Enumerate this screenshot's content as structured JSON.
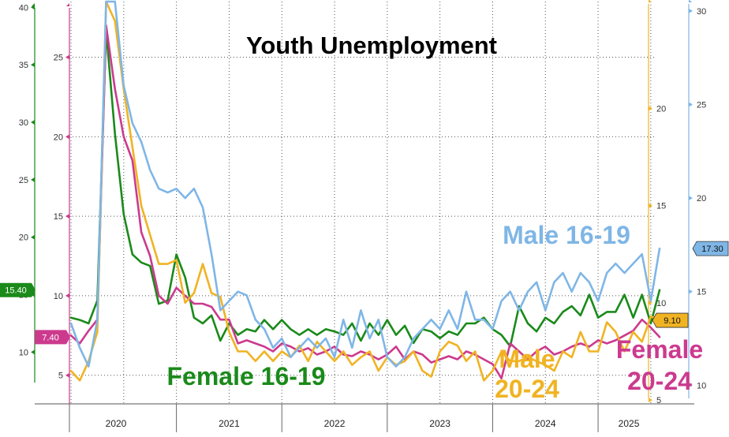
{
  "chart_data": {
    "type": "line",
    "title": "Youth Unemployment",
    "x": [
      "2020-01",
      "2020-02",
      "2020-03",
      "2020-04",
      "2020-05",
      "2020-06",
      "2020-07",
      "2020-08",
      "2020-09",
      "2020-10",
      "2020-11",
      "2020-12",
      "2021-01",
      "2021-02",
      "2021-03",
      "2021-04",
      "2021-05",
      "2021-06",
      "2021-07",
      "2021-08",
      "2021-09",
      "2021-10",
      "2021-11",
      "2021-12",
      "2022-01",
      "2022-02",
      "2022-03",
      "2022-04",
      "2022-05",
      "2022-06",
      "2022-07",
      "2022-08",
      "2022-09",
      "2022-10",
      "2022-11",
      "2022-12",
      "2023-01",
      "2023-02",
      "2023-03",
      "2023-04",
      "2023-05",
      "2023-06",
      "2023-07",
      "2023-08",
      "2023-09",
      "2023-10",
      "2023-11",
      "2023-12",
      "2024-01",
      "2024-02",
      "2024-03",
      "2024-04",
      "2024-05",
      "2024-06",
      "2024-07",
      "2024-08",
      "2024-09",
      "2024-10",
      "2024-11",
      "2024-12",
      "2025-01",
      "2025-02",
      "2025-03",
      "2025-04",
      "2025-05",
      "2025-06",
      "2025-07",
      "2025-08"
    ],
    "x_tick_labels": [
      "2020",
      "2021",
      "2022",
      "2023",
      "2024",
      "2025"
    ],
    "series": [
      {
        "name": "Female 16-19",
        "color": "#1a8a1a",
        "axis": "outer_left",
        "last_value": "15.40",
        "values": [
          13.0,
          12.8,
          12.5,
          14.5,
          38.0,
          29.0,
          22.0,
          18.5,
          17.8,
          17.5,
          14.2,
          14.5,
          18.5,
          16.5,
          13.0,
          12.5,
          13.2,
          11.0,
          12.5,
          11.5,
          12.0,
          11.8,
          12.8,
          12.0,
          12.8,
          12.0,
          11.5,
          12.0,
          11.5,
          12.0,
          11.8,
          11.5,
          12.5,
          11.0,
          12.5,
          11.5,
          12.8,
          11.5,
          12.3,
          10.8,
          12.0,
          11.8,
          11.2,
          11.8,
          11.5,
          12.5,
          12.5,
          13.0,
          12.0,
          11.5,
          10.5,
          14.0,
          12.5,
          11.8,
          13.0,
          12.5,
          13.5,
          14.0,
          13.2,
          15.0,
          13.0,
          13.5,
          13.5,
          15.0,
          13.0,
          15.0,
          12.5,
          15.4
        ]
      },
      {
        "name": "Female 20-24",
        "color": "#cc3a8e",
        "axis": "inner_left",
        "last_value": "7.40",
        "values": [
          7.5,
          7.0,
          7.8,
          8.5,
          27.0,
          23.0,
          20.0,
          18.5,
          14.0,
          12.5,
          10.0,
          9.5,
          10.5,
          10.0,
          9.5,
          9.5,
          9.3,
          8.5,
          8.5,
          7.0,
          7.2,
          7.0,
          6.8,
          6.5,
          7.0,
          6.8,
          6.5,
          6.7,
          6.3,
          6.5,
          6.8,
          6.3,
          6.2,
          6.5,
          6.3,
          6.0,
          6.3,
          6.8,
          6.0,
          6.5,
          6.3,
          5.8,
          6.0,
          6.2,
          6.0,
          6.5,
          6.3,
          6.0,
          5.7,
          4.8,
          7.0,
          6.5,
          6.0,
          6.5,
          6.8,
          6.3,
          6.5,
          6.8,
          7.0,
          6.8,
          7.2,
          7.0,
          7.2,
          7.5,
          7.8,
          8.5,
          8.0,
          7.4
        ]
      },
      {
        "name": "Male 20-24",
        "color": "#f0b323",
        "axis": "inner_right",
        "last_value": "9.10",
        "values": [
          6.5,
          6.0,
          7.0,
          8.5,
          25.5,
          24.5,
          21.0,
          18.0,
          15.0,
          13.5,
          12.0,
          12.0,
          12.2,
          10.0,
          10.5,
          12.0,
          10.5,
          10.3,
          8.5,
          7.5,
          7.5,
          7.0,
          7.5,
          7.0,
          7.5,
          7.2,
          7.8,
          7.0,
          8.0,
          7.5,
          7.0,
          7.5,
          6.8,
          7.2,
          7.5,
          6.5,
          7.2,
          6.8,
          7.0,
          7.5,
          6.5,
          6.2,
          7.5,
          8.0,
          7.8,
          7.0,
          7.5,
          6.0,
          6.5,
          7.5,
          7.0,
          7.0,
          7.2,
          7.0,
          6.8,
          6.5,
          7.5,
          7.2,
          8.5,
          7.5,
          7.5,
          9.0,
          8.5,
          7.5,
          8.5,
          8.0,
          9.3,
          9.1
        ]
      },
      {
        "name": "Male 16-19",
        "color": "#7fb6e6",
        "axis": "outer_right",
        "last_value": "17.30",
        "values": [
          13.3,
          12.0,
          11.0,
          13.5,
          30.5,
          30.5,
          26.0,
          24.0,
          23.0,
          21.5,
          20.5,
          20.3,
          20.5,
          20.0,
          20.5,
          19.5,
          17.0,
          14.0,
          14.5,
          15.0,
          14.8,
          13.5,
          13.0,
          12.0,
          12.5,
          11.5,
          12.0,
          12.5,
          12.0,
          12.5,
          11.5,
          13.5,
          12.0,
          14.0,
          12.5,
          13.5,
          11.5,
          11.0,
          11.5,
          12.5,
          13.0,
          13.5,
          13.0,
          14.0,
          13.0,
          15.0,
          13.5,
          13.5,
          13.0,
          14.5,
          15.0,
          14.0,
          15.0,
          15.5,
          14.0,
          15.5,
          16.0,
          15.0,
          16.0,
          15.5,
          14.5,
          16.0,
          16.5,
          16.0,
          16.5,
          17.0,
          14.5,
          17.3
        ]
      }
    ],
    "axes": {
      "outer_left": {
        "ticks": [
          10,
          15,
          20,
          25,
          30,
          35,
          40
        ],
        "range": [
          5.5,
          40.5
        ],
        "color": "#1a8a1a"
      },
      "inner_left": {
        "ticks": [
          5,
          10,
          15,
          20,
          25
        ],
        "range": [
          3.2,
          28.5
        ],
        "color": "#cc3a8e"
      },
      "inner_right": {
        "ticks": [
          5,
          10,
          15,
          20
        ],
        "range": [
          4.8,
          25.5
        ],
        "color": "#f0b323"
      },
      "outer_right": {
        "ticks": [
          10,
          15,
          20,
          25,
          30
        ],
        "range": [
          9.0,
          30.5
        ],
        "color": "#7fb6e6"
      }
    },
    "labels": [
      {
        "series": "Female 16-19",
        "lines": [
          "Female 16-19"
        ]
      },
      {
        "series": "Male 16-19",
        "lines": [
          "Male 16-19"
        ]
      },
      {
        "series": "Male 20-24",
        "lines": [
          "Male",
          "20-24"
        ]
      },
      {
        "series": "Female 20-24",
        "lines": [
          "Female",
          "20-24"
        ]
      }
    ],
    "grid": true,
    "legend": "none"
  }
}
